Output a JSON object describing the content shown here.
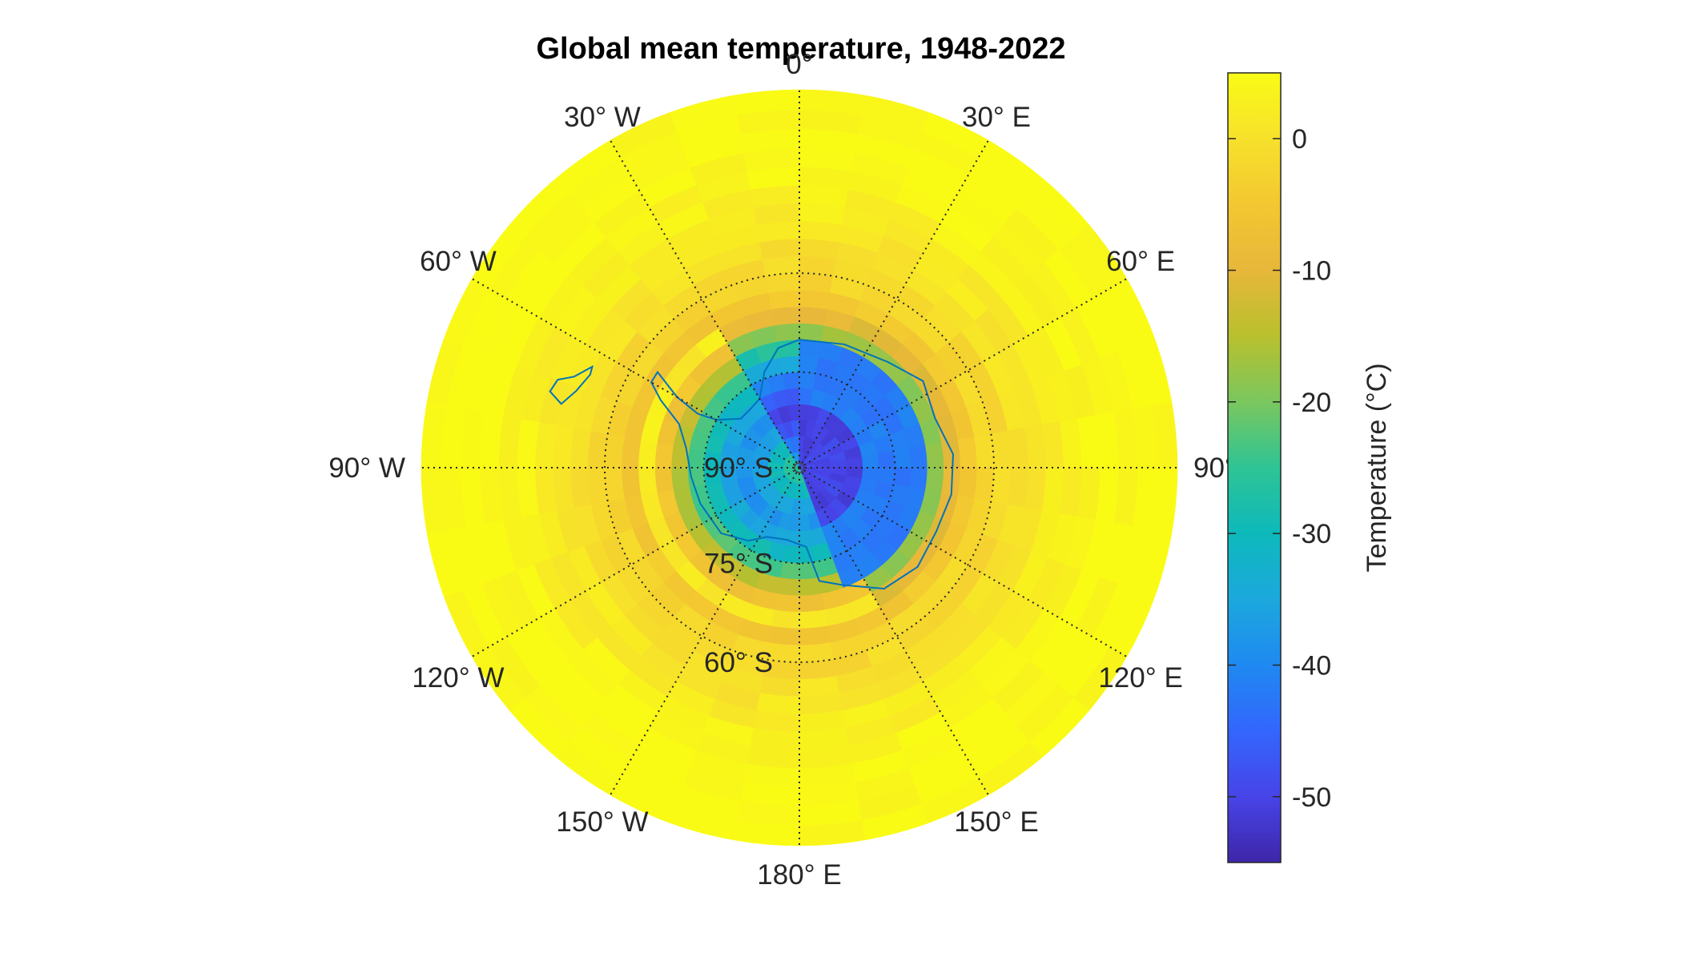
{
  "chart_data": {
    "type": "heatmap",
    "projection": "south-polar-stereographic",
    "title": "Global mean temperature, 1948-2022",
    "colorbar": {
      "label": "Temperature (°C)",
      "range": [
        -55,
        5
      ],
      "ticks": [
        0,
        -10,
        -20,
        -30,
        -40,
        -50
      ],
      "tick_labels": [
        "0",
        "-10",
        "-20",
        "-30",
        "-40",
        "-50"
      ],
      "colormap": [
        "#3e26a8",
        "#4744e8",
        "#3366fd",
        "#1f89f1",
        "#1ca8dd",
        "#0db9bb",
        "#2ec495",
        "#7ac75e",
        "#b9c02e",
        "#e7b73a",
        "#f3c731",
        "#f7e12b",
        "#f9fb15"
      ]
    },
    "latitude_circles": [
      {
        "lat": -60,
        "label": "60° S"
      },
      {
        "lat": -75,
        "label": "75° S"
      },
      {
        "lat": -90,
        "label": "90° S"
      }
    ],
    "longitude_lines": [
      {
        "lon": 0,
        "label": "0°"
      },
      {
        "lon": 30,
        "label": "30° E"
      },
      {
        "lon": 60,
        "label": "60° E"
      },
      {
        "lon": 90,
        "label": "90°"
      },
      {
        "lon": 120,
        "label": "120° E"
      },
      {
        "lon": 150,
        "label": "150° E"
      },
      {
        "lon": 180,
        "label": "180° E"
      },
      {
        "lon": -150,
        "label": "150° W"
      },
      {
        "lon": -120,
        "label": "120° W"
      },
      {
        "lon": -90,
        "label": "90° W"
      },
      {
        "lon": -60,
        "label": "60° W"
      },
      {
        "lon": -30,
        "label": "30° W"
      }
    ],
    "lat_edges": [
      -90,
      -87.5,
      -85,
      -82.5,
      -80,
      -77.5,
      -75,
      -72.5,
      -70,
      -67.5,
      -65,
      -62.5,
      -60,
      -57.5,
      -55,
      -52.5,
      -50,
      -47.5,
      -45,
      -42.5,
      -40,
      -37.5,
      -35
    ],
    "lon_step": 10,
    "temperature_by_latitude_band": [
      -38,
      -42,
      -48,
      -50,
      -47,
      -42,
      -35,
      -27,
      -18,
      -10,
      -5,
      -2,
      -1.5,
      0,
      1,
      2,
      3,
      4,
      4.5,
      5,
      5,
      5
    ],
    "antarctic_plateau": {
      "lon_range": [
        0,
        160
      ],
      "lat_range": [
        -90,
        -70
      ],
      "temperature": -50
    },
    "grid": true,
    "coastlines": true
  }
}
